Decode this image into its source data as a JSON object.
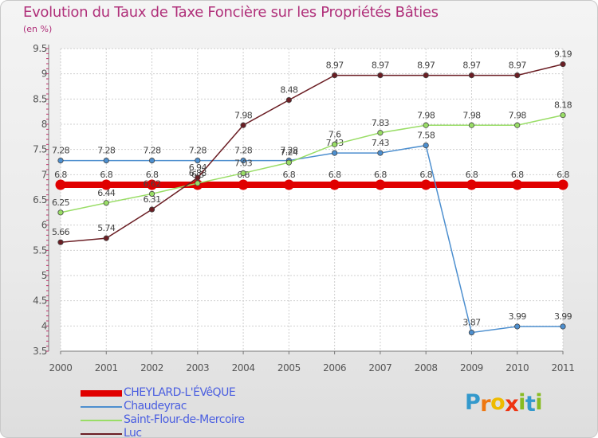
{
  "title": "Evolution du Taux de Taxe Foncière sur les Propriétés Bâties",
  "unit_label": "(en %)",
  "logo": {
    "text": "Proxiti",
    "letters": [
      "P",
      "r",
      "o",
      "x",
      "i",
      "t",
      "i"
    ],
    "colors": [
      "#3399cc",
      "#ee7711",
      "#eebb00",
      "#ee3311",
      "#88bb22",
      "#3399cc",
      "#88bb22"
    ]
  },
  "chart_data": {
    "type": "line",
    "title": "Evolution du Taux de Taxe Foncière sur les Propriétés Bâties",
    "ylabel": "(en %)",
    "xlabel": "",
    "ylim": [
      3.5,
      9.5
    ],
    "yticks": [
      3.5,
      4,
      4.5,
      5,
      5.5,
      6,
      6.5,
      7,
      7.5,
      8,
      8.5,
      9,
      9.5
    ],
    "ytick_labels": [
      "3.5",
      "4",
      "4.5",
      "5",
      "5.5",
      "6",
      "6.5",
      "7",
      "7.5",
      "8",
      "8.5",
      "9",
      "9.5"
    ],
    "categories": [
      "2000",
      "2001",
      "2002",
      "2003",
      "2004",
      "2005",
      "2006",
      "2007",
      "2008",
      "2009",
      "2010",
      "2011"
    ],
    "grid": true,
    "series": [
      {
        "name": "CHEYLARD-L'ÉVêQUE",
        "color": "#e00000",
        "values": [
          6.8,
          6.8,
          6.8,
          6.8,
          6.8,
          6.8,
          6.8,
          6.8,
          6.8,
          6.8,
          6.8,
          6.8
        ],
        "labels": [
          "6.8",
          "6.8",
          "6.8",
          "6.8",
          "6.8",
          "6.8",
          "6.8",
          "6.8",
          "6.8",
          "6.8",
          "6.8",
          "6.8"
        ]
      },
      {
        "name": "Chaudeyrac",
        "color": "#4d8fcf",
        "values": [
          7.28,
          7.28,
          7.28,
          7.28,
          7.28,
          7.28,
          7.43,
          7.43,
          7.58,
          3.87,
          3.99,
          3.99
        ],
        "labels": [
          "7.28",
          "7.28",
          "7.28",
          "7.28",
          "7.28",
          "7.28",
          "7.43",
          "7.43",
          "7.58",
          "3.87",
          "3.99",
          "3.99"
        ]
      },
      {
        "name": "Saint-Flour-de-Mercoire",
        "color": "#99dd66",
        "values": [
          6.25,
          6.44,
          6.62,
          6.83,
          7.03,
          7.24,
          7.6,
          7.83,
          7.98,
          7.98,
          7.98,
          8.18
        ],
        "labels": [
          "6.25",
          "6.44",
          "6.62",
          "6.83",
          "7.03",
          "7.24",
          "7.6",
          "7.83",
          "7.98",
          "7.98",
          "7.98",
          "8.18"
        ]
      },
      {
        "name": "Luc",
        "color": "#6b1e24",
        "values": [
          5.66,
          5.74,
          6.31,
          6.94,
          7.98,
          8.48,
          8.97,
          8.97,
          8.97,
          8.97,
          8.97,
          9.19
        ],
        "labels": [
          "5.66",
          "5.74",
          "6.31",
          "6.94",
          "7.98",
          "8.48",
          "8.97",
          "8.97",
          "8.97",
          "8.97",
          "8.97",
          "9.19"
        ]
      }
    ]
  }
}
